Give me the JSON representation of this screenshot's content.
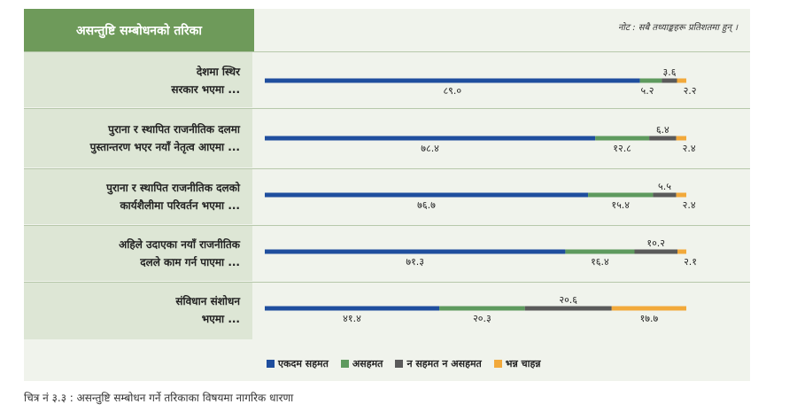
{
  "header": {
    "title": "असन्तुष्टि सम्बोधनको तरिका",
    "note": "नोट : सबै तथ्याङ्कहरू प्रतिशतमा हुन् ।"
  },
  "caption": "चित्र नं ३.३ : असन्तुष्टि सम्बोधन गर्ने तरिकाका विषयमा नागरिक धारणा",
  "chart_data": {
    "type": "bar",
    "stacked": true,
    "orientation": "horizontal",
    "categories": [
      [
        "देशमा स्थिर",
        "सरकार भएमा ..."
      ],
      [
        "पुराना र स्थापित राजनीतिक दलमा",
        "पुस्तान्तरण भएर नयाँ नेतृत्व आएमा ..."
      ],
      [
        "पुराना र स्थापित राजनीतिक दलको",
        "कार्यशैलीमा परिवर्तन भएमा ..."
      ],
      [
        "अहिले उदाएका नयाँ राजनीतिक",
        "दलले काम गर्न पाएमा ..."
      ],
      [
        "संविधान संशोधन",
        "भएमा ..."
      ]
    ],
    "series": [
      {
        "name": "एकदम सहमत",
        "color": "#1f4e9e",
        "values": [
          89.0,
          78.4,
          76.7,
          71.3,
          41.4
        ],
        "labels": [
          "८९.०",
          "७८.४",
          "७६.७",
          "७१.३",
          "४१.४"
        ]
      },
      {
        "name": "असहमत",
        "color": "#5e9a5e",
        "values": [
          5.2,
          12.8,
          15.4,
          16.4,
          20.3
        ],
        "labels": [
          "५.२",
          "१२.८",
          "१५.४",
          "१६.४",
          "२०.३"
        ]
      },
      {
        "name": "न सहमत न असहमत",
        "color": "#5a5a5a",
        "values": [
          3.6,
          6.4,
          5.5,
          10.2,
          20.6
        ],
        "labels": [
          "३.६",
          "६.४",
          "५.५",
          "१०.२",
          "२०.६"
        ]
      },
      {
        "name": "भन्न चाहन्न",
        "color": "#f2a93b",
        "values": [
          2.2,
          2.4,
          2.4,
          2.1,
          17.7
        ],
        "labels": [
          "२.२",
          "२.४",
          "२.४",
          "२.१",
          "१७.७"
        ]
      }
    ],
    "xlim": [
      0,
      100
    ],
    "legend": "bottom"
  }
}
